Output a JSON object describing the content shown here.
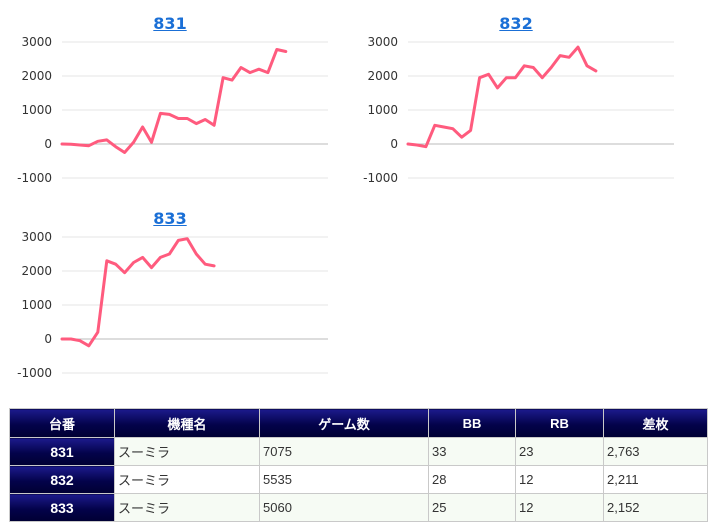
{
  "charts": [
    {
      "title": "831",
      "chart_data": {
        "type": "line",
        "color": "#ff5b7e",
        "ylim": [
          -1000,
          3000
        ],
        "yticks": [
          3000,
          2000,
          1000,
          0,
          -1000
        ],
        "grid": true,
        "values": [
          0,
          -10,
          -30,
          -50,
          80,
          120,
          -80,
          -250,
          50,
          500,
          50,
          900,
          870,
          750,
          750,
          600,
          720,
          550,
          1950,
          1880,
          2250,
          2100,
          2200,
          2100,
          2780,
          2720
        ]
      }
    },
    {
      "title": "832",
      "chart_data": {
        "type": "line",
        "color": "#ff5b7e",
        "ylim": [
          -1000,
          3000
        ],
        "yticks": [
          3000,
          2000,
          1000,
          0,
          -1000
        ],
        "grid": true,
        "values": [
          0,
          -30,
          -80,
          550,
          500,
          450,
          200,
          400,
          1950,
          2050,
          1650,
          1950,
          1950,
          2300,
          2250,
          1950,
          2250,
          2600,
          2550,
          2850,
          2300,
          2150
        ]
      }
    },
    {
      "title": "833",
      "chart_data": {
        "type": "line",
        "color": "#ff5b7e",
        "ylim": [
          -1000,
          3000
        ],
        "yticks": [
          3000,
          2000,
          1000,
          0,
          -1000
        ],
        "grid": true,
        "values": [
          0,
          0,
          -50,
          -200,
          200,
          2300,
          2200,
          1950,
          2250,
          2400,
          2100,
          2400,
          2500,
          2900,
          2950,
          2500,
          2200,
          2150
        ]
      }
    }
  ],
  "table": {
    "headers": [
      "台番",
      "機種名",
      "ゲーム数",
      "BB",
      "RB",
      "差枚"
    ],
    "rows": [
      [
        "831",
        "スーミラ",
        "7075",
        "33",
        "23",
        "2,763"
      ],
      [
        "832",
        "スーミラ",
        "5535",
        "28",
        "12",
        "2,211"
      ],
      [
        "833",
        "スーミラ",
        "5060",
        "25",
        "12",
        "2,152"
      ]
    ]
  }
}
